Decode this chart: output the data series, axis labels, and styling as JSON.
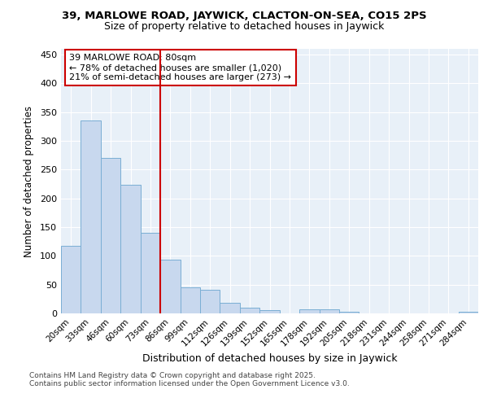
{
  "title1": "39, MARLOWE ROAD, JAYWICK, CLACTON-ON-SEA, CO15 2PS",
  "title2": "Size of property relative to detached houses in Jaywick",
  "xlabel": "Distribution of detached houses by size in Jaywick",
  "ylabel": "Number of detached properties",
  "categories": [
    "20sqm",
    "33sqm",
    "46sqm",
    "60sqm",
    "73sqm",
    "86sqm",
    "99sqm",
    "112sqm",
    "126sqm",
    "139sqm",
    "152sqm",
    "165sqm",
    "178sqm",
    "192sqm",
    "205sqm",
    "218sqm",
    "231sqm",
    "244sqm",
    "258sqm",
    "271sqm",
    "284sqm"
  ],
  "values": [
    117,
    335,
    270,
    224,
    140,
    94,
    46,
    41,
    18,
    10,
    6,
    0,
    7,
    7,
    3,
    0,
    0,
    0,
    0,
    0,
    3
  ],
  "bar_color_fill": "#c8d8ee",
  "bar_color_edge": "#7aaed4",
  "background_color": "#ffffff",
  "axes_background": "#e8f0f8",
  "grid_color": "#ffffff",
  "vline_x": 5,
  "vline_color": "#cc0000",
  "annotation_text": "39 MARLOWE ROAD: 80sqm\n← 78% of detached houses are smaller (1,020)\n21% of semi-detached houses are larger (273) →",
  "annotation_box_color": "#ffffff",
  "annotation_box_edge": "#cc0000",
  "ylim": [
    0,
    460
  ],
  "yticks": [
    0,
    50,
    100,
    150,
    200,
    250,
    300,
    350,
    400,
    450
  ],
  "footnote1": "Contains HM Land Registry data © Crown copyright and database right 2025.",
  "footnote2": "Contains public sector information licensed under the Open Government Licence v3.0."
}
